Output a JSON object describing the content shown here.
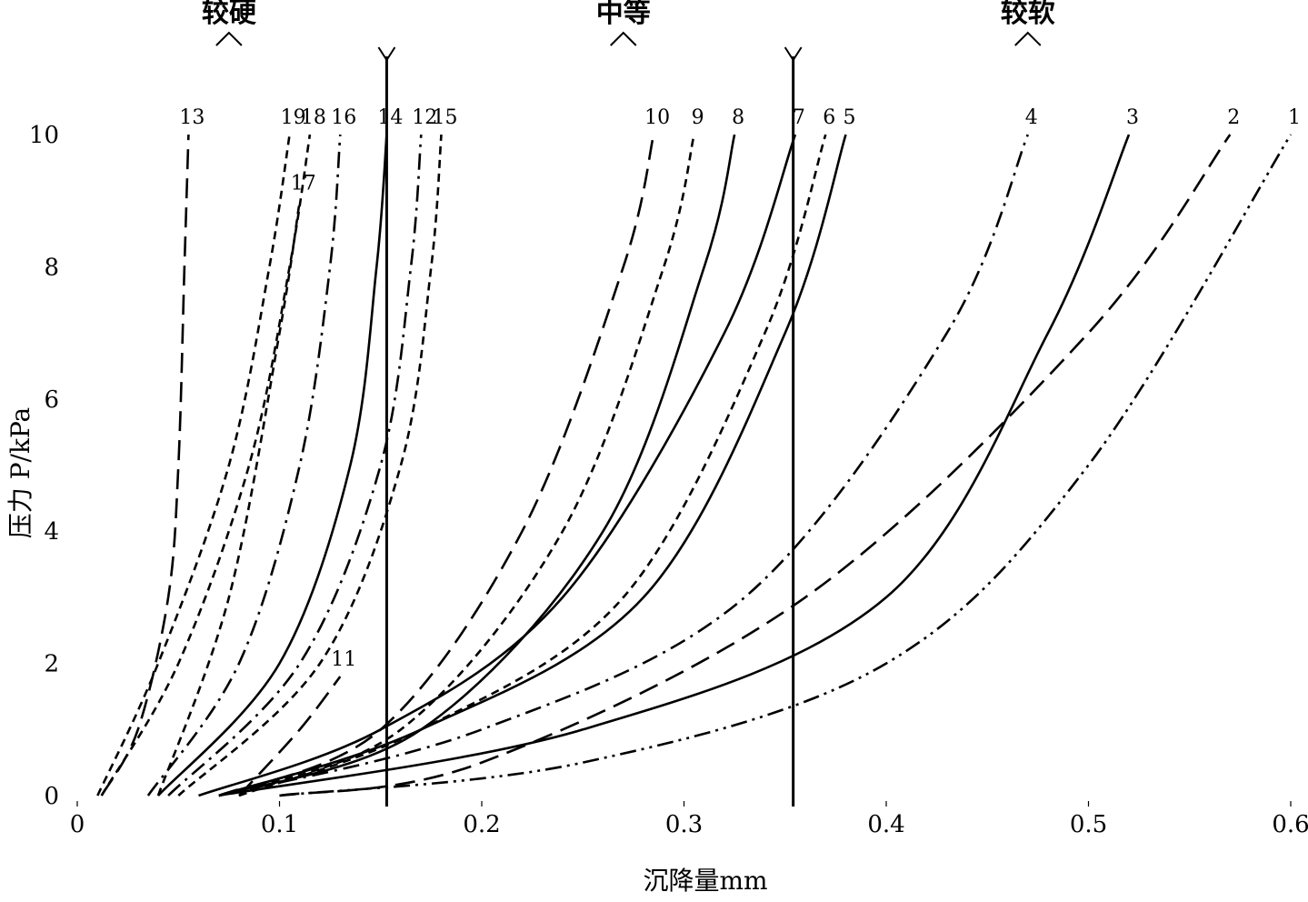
{
  "chart_data": {
    "type": "line",
    "title": "",
    "xlabel": "沉降量mm",
    "ylabel": "压力 P/kPa",
    "xlim": [
      0,
      0.6
    ],
    "ylim": [
      0,
      10
    ],
    "x_ticks": [
      "0",
      "0.1",
      "0.2",
      "0.3",
      "0.4",
      "0.5",
      "0.6"
    ],
    "y_ticks": [
      "0",
      "2",
      "4",
      "6",
      "8",
      "10"
    ],
    "x_tick_values": [
      0,
      0.1,
      0.2,
      0.3,
      0.4,
      0.5,
      0.6
    ],
    "y_tick_values": [
      0,
      2,
      4,
      6,
      8,
      10
    ],
    "zones": [
      {
        "label": "较硬",
        "x": 0.075
      },
      {
        "label": "中等",
        "x": 0.27
      },
      {
        "label": "较软",
        "x": 0.47
      }
    ],
    "reference_lines_x": [
      0.153,
      0.354
    ],
    "series": [
      {
        "label": "13",
        "dash": "long",
        "x": [
          0.012,
          0.03,
          0.045,
          0.05,
          0.053,
          0.055
        ],
        "y": [
          0,
          1,
          3,
          5,
          8,
          10
        ]
      },
      {
        "label": "19",
        "dash": "short",
        "x": [
          0.01,
          0.04,
          0.075,
          0.095,
          0.105
        ],
        "y": [
          0,
          2,
          5,
          8,
          10
        ]
      },
      {
        "label": "18",
        "dash": "short",
        "x": [
          0.012,
          0.05,
          0.085,
          0.105,
          0.115
        ],
        "y": [
          0,
          2,
          5,
          8,
          10
        ]
      },
      {
        "label": "16",
        "dash": "dashdot",
        "x": [
          0.035,
          0.08,
          0.11,
          0.125,
          0.13
        ],
        "y": [
          0,
          2,
          5,
          8,
          10
        ]
      },
      {
        "label": "17",
        "dash": "short",
        "x": [
          0.04,
          0.075,
          0.1,
          0.11
        ],
        "y": [
          0,
          3,
          7,
          9
        ]
      },
      {
        "label": "14",
        "dash": "solid",
        "x": [
          0.04,
          0.1,
          0.135,
          0.148,
          0.153
        ],
        "y": [
          0,
          2,
          5,
          8,
          10
        ]
      },
      {
        "label": "12",
        "dash": "dashdot",
        "x": [
          0.045,
          0.11,
          0.15,
          0.165,
          0.17
        ],
        "y": [
          0,
          2,
          5,
          8,
          10
        ]
      },
      {
        "label": "15",
        "dash": "short",
        "x": [
          0.05,
          0.12,
          0.16,
          0.175,
          0.18
        ],
        "y": [
          0,
          2,
          5,
          8,
          10
        ]
      },
      {
        "label": "11",
        "dash": "long",
        "x": [
          0.08,
          0.11,
          0.13
        ],
        "y": [
          0,
          1,
          1.8
        ]
      },
      {
        "label": "10",
        "dash": "long",
        "x": [
          0.07,
          0.15,
          0.22,
          0.27,
          0.285
        ],
        "y": [
          0,
          1,
          4,
          8,
          10
        ]
      },
      {
        "label": "9",
        "dash": "short",
        "x": [
          0.07,
          0.16,
          0.24,
          0.29,
          0.305
        ],
        "y": [
          0,
          1,
          4,
          8,
          10
        ]
      },
      {
        "label": "8",
        "dash": "solid",
        "x": [
          0.07,
          0.17,
          0.26,
          0.31,
          0.325
        ],
        "y": [
          0,
          1,
          4,
          8,
          10
        ]
      },
      {
        "label": "7",
        "dash": "solid",
        "x": [
          0.06,
          0.15,
          0.24,
          0.32,
          0.355
        ],
        "y": [
          0,
          1,
          3,
          7,
          10
        ]
      },
      {
        "label": "6",
        "dash": "short",
        "x": [
          0.08,
          0.17,
          0.27,
          0.34,
          0.37
        ],
        "y": [
          0,
          1,
          3,
          7,
          10
        ]
      },
      {
        "label": "5",
        "dash": "solid",
        "x": [
          0.07,
          0.17,
          0.28,
          0.35,
          0.38
        ],
        "y": [
          0,
          1,
          3,
          7,
          10
        ]
      },
      {
        "label": "4",
        "dash": "dashdot",
        "x": [
          0.07,
          0.2,
          0.33,
          0.43,
          0.47
        ],
        "y": [
          0,
          1,
          3,
          7,
          10
        ]
      },
      {
        "label": "3",
        "dash": "solid",
        "x": [
          0.07,
          0.25,
          0.4,
          0.48,
          0.52
        ],
        "y": [
          0,
          1,
          3,
          7,
          10
        ]
      },
      {
        "label": "2",
        "dash": "long",
        "x": [
          0.1,
          0.2,
          0.36,
          0.5,
          0.57
        ],
        "y": [
          0,
          0.5,
          3,
          7,
          10
        ]
      },
      {
        "label": "1",
        "dash": "dashdotdot",
        "x": [
          0.1,
          0.25,
          0.4,
          0.5,
          0.6
        ],
        "y": [
          0,
          0.5,
          2,
          5,
          10
        ]
      }
    ]
  }
}
